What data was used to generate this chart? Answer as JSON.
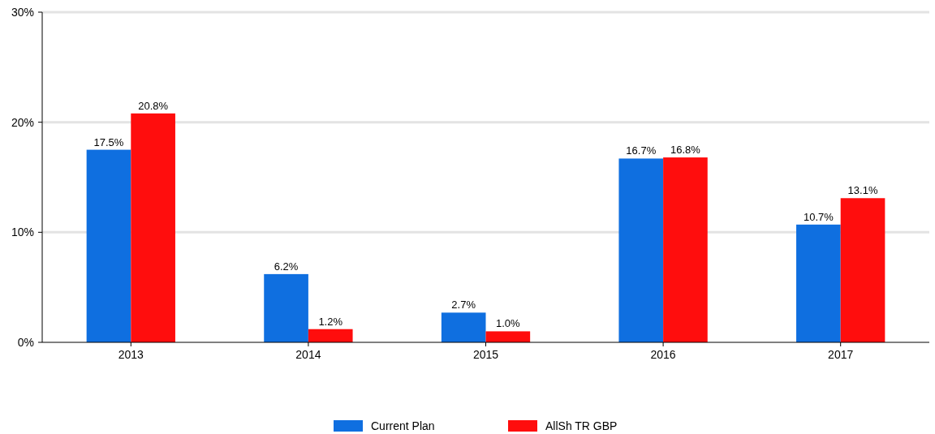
{
  "chart_data": {
    "type": "bar",
    "categories": [
      "2013",
      "2014",
      "2015",
      "2016",
      "2017"
    ],
    "series": [
      {
        "name": "Current Plan",
        "color": "#0f6fe0",
        "values": [
          17.5,
          6.2,
          2.7,
          16.7,
          10.7
        ],
        "value_labels": [
          "17.5%",
          "6.2%",
          "2.7%",
          "16.7%",
          "10.7%"
        ]
      },
      {
        "name": "AllSh TR GBP",
        "color": "#ff0d0d",
        "values": [
          20.8,
          1.2,
          1.0,
          16.8,
          13.1
        ],
        "value_labels": [
          "20.8%",
          "1.2%",
          "1.0%",
          "16.8%",
          "13.1%"
        ]
      }
    ],
    "ylim": [
      0,
      30
    ],
    "yticks": [
      {
        "value": 0,
        "label": "0%"
      },
      {
        "value": 10,
        "label": "10%"
      },
      {
        "value": 20,
        "label": "20%"
      },
      {
        "value": 30,
        "label": "30%"
      }
    ],
    "grid": "y",
    "legend": "bottom"
  }
}
